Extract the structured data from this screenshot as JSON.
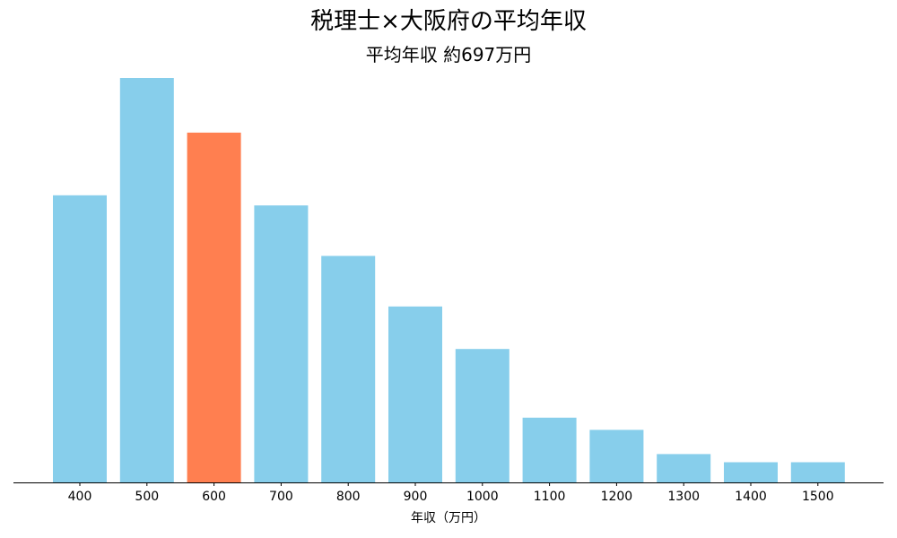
{
  "chart_data": {
    "type": "bar",
    "title": "税理士×大阪府の平均年収",
    "subtitle": "平均年収 約697万円",
    "xlabel": "年収（万円）",
    "ylabel": "",
    "categories": [
      "400",
      "500",
      "600",
      "700",
      "800",
      "900",
      "1000",
      "1100",
      "1200",
      "1300",
      "1400",
      "1500"
    ],
    "values": [
      14.2,
      20.0,
      17.3,
      13.7,
      11.2,
      8.7,
      6.6,
      3.2,
      2.6,
      1.4,
      1.0,
      1.0
    ],
    "highlight_category": "600",
    "colors": {
      "bar": "#87CEEB",
      "highlight": "#FF7F50",
      "axis": "#000000"
    },
    "grid": false,
    "y_axis_visible": false
  }
}
